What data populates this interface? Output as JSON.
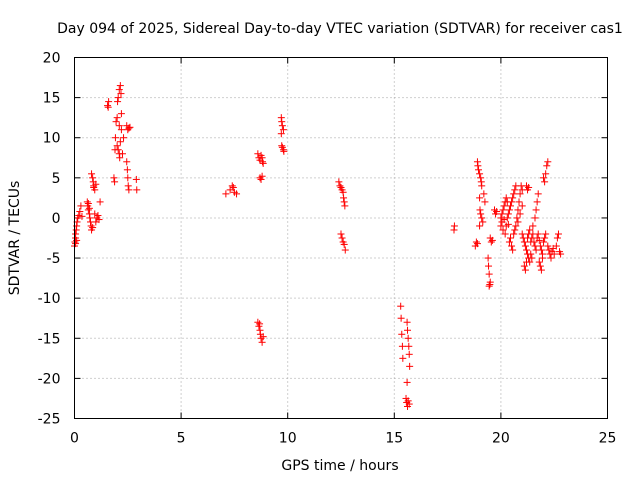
{
  "chart_data": {
    "type": "scatter",
    "title": "Day 094 of 2025, Sidereal Day-to-day VTEC variation (SDTVAR) for receiver cas1",
    "xlabel": "GPS time / hours",
    "ylabel": "SDTVAR / TECUs",
    "xlim": [
      0,
      25
    ],
    "ylim": [
      -25,
      20
    ],
    "xticks": [
      0,
      5,
      10,
      15,
      20,
      25
    ],
    "yticks": [
      20,
      15,
      10,
      5,
      0,
      -5,
      -10,
      -15,
      -20,
      -25
    ],
    "xtick_labels": [
      "0",
      "5",
      "10",
      "15",
      "20",
      "25"
    ],
    "ytick_labels": [
      "20",
      "15",
      "10",
      "5",
      "0",
      "-5",
      "-10",
      "-15",
      "-20",
      "-25"
    ],
    "grid": true,
    "marker": "+",
    "series": [
      {
        "name": "SDTVAR",
        "color": "#ff0000",
        "points": [
          [
            0.0,
            -3.5
          ],
          [
            0.02,
            -3.0
          ],
          [
            0.05,
            -2.5
          ],
          [
            0.05,
            -2.0
          ],
          [
            0.08,
            -1.5
          ],
          [
            0.1,
            -1.0
          ],
          [
            0.12,
            -0.5
          ],
          [
            0.15,
            0.0
          ],
          [
            0.2,
            0.3
          ],
          [
            0.25,
            0.8
          ],
          [
            0.3,
            1.5
          ],
          [
            0.35,
            0.2
          ],
          [
            0.05,
            -3.2
          ],
          [
            0.1,
            -2.8
          ],
          [
            0.6,
            2.0
          ],
          [
            0.62,
            1.5
          ],
          [
            0.65,
            1.0
          ],
          [
            0.7,
            0.5
          ],
          [
            0.72,
            0.0
          ],
          [
            0.75,
            -0.5
          ],
          [
            0.78,
            -1.0
          ],
          [
            0.8,
            -1.5
          ],
          [
            0.85,
            -1.2
          ],
          [
            0.65,
            1.8
          ],
          [
            0.7,
            1.2
          ],
          [
            0.8,
            5.5
          ],
          [
            0.85,
            5.0
          ],
          [
            0.88,
            4.5
          ],
          [
            0.9,
            4.0
          ],
          [
            0.95,
            3.5
          ],
          [
            1.0,
            4.2
          ],
          [
            1.0,
            -0.5
          ],
          [
            1.05,
            0.0
          ],
          [
            1.1,
            0.3
          ],
          [
            1.15,
            -0.2
          ],
          [
            1.2,
            2.0
          ],
          [
            0.9,
            3.8
          ],
          [
            0.95,
            0.5
          ],
          [
            1.55,
            14.0
          ],
          [
            1.6,
            14.5
          ],
          [
            1.58,
            13.8
          ],
          [
            1.85,
            5.0
          ],
          [
            1.88,
            4.5
          ],
          [
            1.9,
            8.5
          ],
          [
            1.92,
            10.0
          ],
          [
            1.95,
            12.0
          ],
          [
            2.0,
            12.5
          ],
          [
            2.02,
            14.5
          ],
          [
            2.05,
            15.0
          ],
          [
            2.1,
            16.0
          ],
          [
            2.15,
            16.5
          ],
          [
            2.18,
            15.5
          ],
          [
            2.2,
            13.0
          ],
          [
            2.0,
            9.0
          ],
          [
            2.05,
            8.5
          ],
          [
            2.1,
            8.0
          ],
          [
            2.12,
            7.5
          ],
          [
            2.15,
            9.5
          ],
          [
            2.2,
            11.0
          ],
          [
            2.25,
            8.0
          ],
          [
            2.1,
            11.5
          ],
          [
            2.3,
            10.0
          ],
          [
            2.45,
            11.5
          ],
          [
            2.5,
            11.0
          ],
          [
            2.55,
            11.2
          ],
          [
            2.6,
            11.3
          ],
          [
            2.45,
            7.0
          ],
          [
            2.48,
            6.0
          ],
          [
            2.5,
            5.0
          ],
          [
            2.52,
            4.0
          ],
          [
            2.55,
            3.5
          ],
          [
            2.9,
            4.8
          ],
          [
            2.92,
            3.5
          ],
          [
            7.1,
            3.0
          ],
          [
            7.3,
            3.5
          ],
          [
            7.4,
            4.0
          ],
          [
            7.45,
            3.8
          ],
          [
            7.5,
            3.2
          ],
          [
            7.6,
            3.0
          ],
          [
            8.6,
            8.0
          ],
          [
            8.65,
            7.5
          ],
          [
            8.7,
            7.2
          ],
          [
            8.75,
            7.8
          ],
          [
            8.8,
            7.5
          ],
          [
            8.82,
            7.0
          ],
          [
            8.85,
            6.8
          ],
          [
            8.7,
            5.0
          ],
          [
            8.75,
            4.8
          ],
          [
            8.8,
            5.2
          ],
          [
            8.6,
            -13.0
          ],
          [
            8.65,
            -13.5
          ],
          [
            8.7,
            -14.0
          ],
          [
            8.72,
            -14.5
          ],
          [
            8.75,
            -15.0
          ],
          [
            8.8,
            -15.5
          ],
          [
            8.85,
            -14.8
          ],
          [
            8.68,
            -13.2
          ],
          [
            9.7,
            12.5
          ],
          [
            9.72,
            12.0
          ],
          [
            9.75,
            11.5
          ],
          [
            9.8,
            11.0
          ],
          [
            9.7,
            10.5
          ],
          [
            9.72,
            9.0
          ],
          [
            9.75,
            8.8
          ],
          [
            9.8,
            8.5
          ],
          [
            9.82,
            8.3
          ],
          [
            12.4,
            4.5
          ],
          [
            12.45,
            4.0
          ],
          [
            12.5,
            3.8
          ],
          [
            12.55,
            3.5
          ],
          [
            12.6,
            3.2
          ],
          [
            12.62,
            2.5
          ],
          [
            12.65,
            2.0
          ],
          [
            12.68,
            1.5
          ],
          [
            12.5,
            -2.0
          ],
          [
            12.55,
            -2.5
          ],
          [
            12.6,
            -3.0
          ],
          [
            12.65,
            -3.3
          ],
          [
            12.7,
            -4.0
          ],
          [
            15.3,
            -11.0
          ],
          [
            15.32,
            -12.5
          ],
          [
            15.35,
            -14.5
          ],
          [
            15.38,
            -16.0
          ],
          [
            15.4,
            -17.5
          ],
          [
            15.6,
            -13.0
          ],
          [
            15.62,
            -14.0
          ],
          [
            15.65,
            -15.0
          ],
          [
            15.68,
            -16.0
          ],
          [
            15.7,
            -17.0
          ],
          [
            15.72,
            -18.5
          ],
          [
            15.6,
            -20.5
          ],
          [
            15.55,
            -22.5
          ],
          [
            15.58,
            -23.0
          ],
          [
            15.62,
            -23.5
          ],
          [
            15.65,
            -22.8
          ],
          [
            15.7,
            -23.2
          ],
          [
            17.8,
            -1.5
          ],
          [
            17.82,
            -1.0
          ],
          [
            18.8,
            -3.5
          ],
          [
            18.85,
            -3.0
          ],
          [
            18.9,
            -3.2
          ],
          [
            18.9,
            7.0
          ],
          [
            18.92,
            6.5
          ],
          [
            18.95,
            6.0
          ],
          [
            19.0,
            5.5
          ],
          [
            19.05,
            5.0
          ],
          [
            19.08,
            4.5
          ],
          [
            19.1,
            4.0
          ],
          [
            19.0,
            2.5
          ],
          [
            19.02,
            1.0
          ],
          [
            19.05,
            0.5
          ],
          [
            19.1,
            0.0
          ],
          [
            19.15,
            -0.5
          ],
          [
            19.0,
            -1.0
          ],
          [
            19.2,
            3.0
          ],
          [
            19.25,
            2.0
          ],
          [
            19.4,
            -5.0
          ],
          [
            19.42,
            -6.0
          ],
          [
            19.45,
            -7.0
          ],
          [
            19.5,
            -8.0
          ],
          [
            19.45,
            -8.5
          ],
          [
            19.48,
            -8.3
          ],
          [
            19.5,
            -2.5
          ],
          [
            19.55,
            -3.0
          ],
          [
            19.6,
            -2.8
          ],
          [
            19.7,
            1.0
          ],
          [
            19.75,
            0.5
          ],
          [
            19.8,
            0.8
          ],
          [
            20.0,
            0.0
          ],
          [
            20.05,
            0.5
          ],
          [
            20.1,
            1.0
          ],
          [
            20.15,
            1.5
          ],
          [
            20.2,
            2.0
          ],
          [
            20.25,
            2.5
          ],
          [
            20.0,
            -1.0
          ],
          [
            20.05,
            -0.5
          ],
          [
            20.1,
            -1.5
          ],
          [
            20.2,
            -2.0
          ],
          [
            20.25,
            -1.0
          ],
          [
            20.3,
            0.0
          ],
          [
            20.35,
            0.5
          ],
          [
            20.4,
            1.0
          ],
          [
            20.45,
            1.5
          ],
          [
            20.5,
            2.0
          ],
          [
            20.55,
            2.5
          ],
          [
            20.6,
            3.0
          ],
          [
            20.65,
            3.5
          ],
          [
            20.7,
            4.0
          ],
          [
            20.4,
            -3.0
          ],
          [
            20.45,
            -2.5
          ],
          [
            20.5,
            -3.5
          ],
          [
            20.55,
            -4.0
          ],
          [
            20.6,
            -2.0
          ],
          [
            20.7,
            -1.0
          ],
          [
            20.75,
            0.0
          ],
          [
            20.8,
            1.0
          ],
          [
            20.85,
            2.0
          ],
          [
            20.9,
            3.0
          ],
          [
            20.95,
            4.0
          ],
          [
            21.0,
            3.5
          ],
          [
            20.3,
            2.0
          ],
          [
            20.15,
            -0.2
          ],
          [
            20.35,
            -0.8
          ],
          [
            20.65,
            -1.5
          ],
          [
            20.8,
            -0.5
          ],
          [
            20.9,
            0.5
          ],
          [
            21.0,
            1.5
          ],
          [
            21.0,
            -2.0
          ],
          [
            21.05,
            -2.5
          ],
          [
            21.1,
            -3.0
          ],
          [
            21.15,
            -3.5
          ],
          [
            21.2,
            -4.0
          ],
          [
            21.25,
            -4.5
          ],
          [
            21.3,
            -5.0
          ],
          [
            21.35,
            -5.5
          ],
          [
            21.1,
            -6.0
          ],
          [
            21.15,
            -6.5
          ],
          [
            21.2,
            -5.5
          ],
          [
            21.25,
            -2.5
          ],
          [
            21.3,
            -2.0
          ],
          [
            21.35,
            -1.5
          ],
          [
            21.4,
            -3.0
          ],
          [
            21.45,
            -2.5
          ],
          [
            21.5,
            -2.0
          ],
          [
            21.55,
            -3.0
          ],
          [
            21.6,
            -3.5
          ],
          [
            21.65,
            -4.0
          ],
          [
            21.7,
            -2.5
          ],
          [
            21.75,
            -2.0
          ],
          [
            21.5,
            -1.0
          ],
          [
            21.6,
            0.0
          ],
          [
            21.65,
            1.0
          ],
          [
            21.7,
            2.0
          ],
          [
            21.75,
            3.0
          ],
          [
            21.2,
            4.0
          ],
          [
            21.25,
            3.5
          ],
          [
            21.3,
            3.8
          ],
          [
            21.4,
            -4.5
          ],
          [
            21.45,
            -5.0
          ],
          [
            21.8,
            -2.8
          ],
          [
            21.85,
            -3.5
          ],
          [
            21.9,
            -4.0
          ],
          [
            21.95,
            -4.5
          ],
          [
            22.0,
            -3.0
          ],
          [
            22.05,
            -2.5
          ],
          [
            22.1,
            -2.0
          ],
          [
            21.8,
            -5.5
          ],
          [
            21.85,
            -6.0
          ],
          [
            21.9,
            -6.5
          ],
          [
            21.95,
            -5.0
          ],
          [
            22.0,
            5.0
          ],
          [
            22.05,
            4.5
          ],
          [
            22.1,
            5.5
          ],
          [
            22.15,
            6.5
          ],
          [
            22.2,
            7.0
          ],
          [
            22.2,
            -3.5
          ],
          [
            22.25,
            -4.0
          ],
          [
            22.3,
            -4.5
          ],
          [
            22.35,
            -5.0
          ],
          [
            22.4,
            -4.2
          ],
          [
            22.45,
            -3.8
          ],
          [
            22.5,
            -4.5
          ],
          [
            22.6,
            -3.5
          ],
          [
            22.65,
            -2.5
          ],
          [
            22.7,
            -2.0
          ],
          [
            22.75,
            -4.2
          ],
          [
            22.8,
            -4.5
          ]
        ]
      }
    ]
  }
}
